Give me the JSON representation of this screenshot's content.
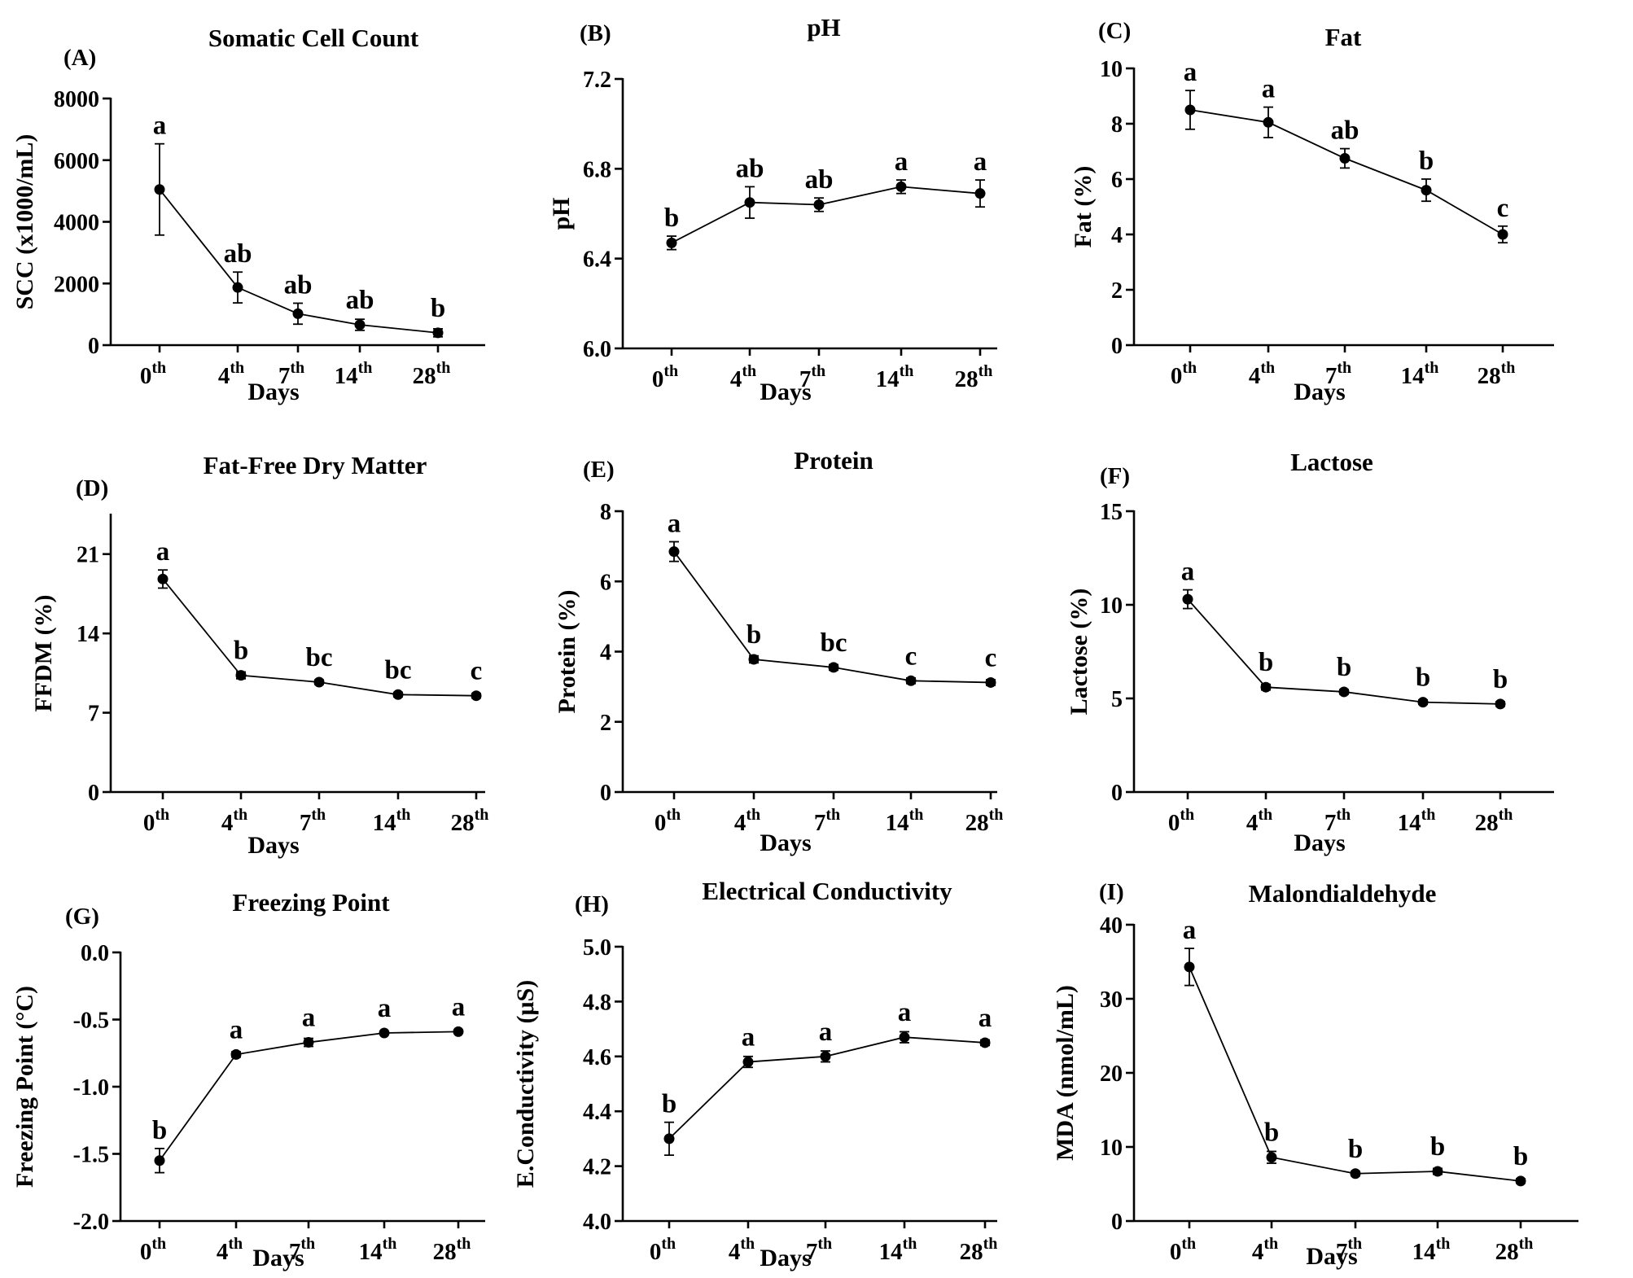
{
  "figure": {
    "xlabel": "Days",
    "categories": [
      {
        "num": "0",
        "sup": "th"
      },
      {
        "num": "4",
        "sup": "th"
      },
      {
        "num": "7",
        "sup": "th"
      },
      {
        "num": "14",
        "sup": "th"
      },
      {
        "num": "28",
        "sup": "th"
      }
    ]
  },
  "chart_data": [
    {
      "panel": "(A)",
      "type": "line",
      "title": "Somatic Cell  Count",
      "xlabel": "Days",
      "ylabel": "SCC (x1000/mL)",
      "categories": [
        "0th",
        "4th",
        "7th",
        "14th",
        "28th"
      ],
      "values": [
        5050,
        1870,
        1020,
        660,
        400
      ],
      "errors": [
        1480,
        500,
        340,
        180,
        130
      ],
      "letters": [
        "a",
        "ab",
        "ab",
        "ab",
        "b"
      ],
      "ylim": [
        0,
        8000
      ],
      "yticks": [
        0,
        2000,
        4000,
        6000,
        8000
      ],
      "ytick_labels": [
        "0",
        "2000",
        "4000",
        "6000",
        "8000"
      ]
    },
    {
      "panel": "(B)",
      "type": "line",
      "title": "pH",
      "xlabel": "Days",
      "ylabel": "pH",
      "categories": [
        "0th",
        "4th",
        "7th",
        "14th",
        "28th"
      ],
      "values": [
        6.47,
        6.65,
        6.64,
        6.72,
        6.69
      ],
      "errors": [
        0.03,
        0.07,
        0.03,
        0.03,
        0.06
      ],
      "letters": [
        "b",
        "ab",
        "ab",
        "a",
        "a"
      ],
      "ylim": [
        6.0,
        7.2
      ],
      "yticks": [
        6.0,
        6.4,
        6.8,
        7.2
      ],
      "ytick_labels": [
        "6.0",
        "6.4",
        "6.8",
        "7.2"
      ]
    },
    {
      "panel": "(C)",
      "type": "line",
      "title": "Fat",
      "xlabel": "Days",
      "ylabel": "Fat (%)",
      "categories": [
        "0th",
        "4th",
        "7th",
        "14th",
        "28th"
      ],
      "values": [
        8.5,
        8.05,
        6.75,
        5.6,
        4.0
      ],
      "errors": [
        0.7,
        0.55,
        0.35,
        0.4,
        0.3
      ],
      "letters": [
        "a",
        "a",
        "ab",
        "b",
        "c"
      ],
      "ylim": [
        0,
        10
      ],
      "yticks": [
        0,
        2,
        4,
        6,
        8,
        10
      ],
      "ytick_labels": [
        "0",
        "2",
        "4",
        "6",
        "8",
        "10"
      ]
    },
    {
      "panel": "(D)",
      "type": "line",
      "title": "Fat-Free Dry Matter",
      "xlabel": "Days",
      "ylabel": "FFDM (%)",
      "categories": [
        "0th",
        "4th",
        "7th",
        "14th",
        "28th"
      ],
      "values": [
        18.8,
        10.3,
        9.7,
        8.6,
        8.5
      ],
      "errors": [
        0.8,
        0.3,
        0.2,
        0.2,
        0.2
      ],
      "letters": [
        "a",
        "b",
        "bc",
        "bc",
        "c"
      ],
      "ylim": [
        0,
        24.5
      ],
      "yticks": [
        0,
        7,
        14,
        21
      ],
      "ytick_labels": [
        "0",
        "7",
        "14",
        "21"
      ]
    },
    {
      "panel": "(E)",
      "type": "line",
      "title": "Protein",
      "xlabel": "Days",
      "ylabel": "Protein (%)",
      "categories": [
        "0th",
        "4th",
        "7th",
        "14th",
        "28th"
      ],
      "values": [
        6.85,
        3.78,
        3.55,
        3.17,
        3.12
      ],
      "errors": [
        0.28,
        0.1,
        0.08,
        0.08,
        0.08
      ],
      "letters": [
        "a",
        "b",
        "bc",
        "c",
        "c"
      ],
      "ylim": [
        0,
        8
      ],
      "yticks": [
        0,
        2,
        4,
        6,
        8
      ],
      "ytick_labels": [
        "0",
        "2",
        "4",
        "6",
        "8"
      ]
    },
    {
      "panel": "(F)",
      "type": "line",
      "title": "Lactose",
      "xlabel": "Days",
      "ylabel": "Lactose (%)",
      "categories": [
        "0th",
        "4th",
        "7th",
        "14th",
        "28th"
      ],
      "values": [
        10.3,
        5.6,
        5.35,
        4.8,
        4.7
      ],
      "errors": [
        0.5,
        0.15,
        0.12,
        0.12,
        0.12
      ],
      "letters": [
        "a",
        "b",
        "b",
        "b",
        "b"
      ],
      "ylim": [
        0,
        15
      ],
      "yticks": [
        0,
        5,
        10,
        15
      ],
      "ytick_labels": [
        "0",
        "5",
        "10",
        "15"
      ]
    },
    {
      "panel": "(G)",
      "type": "line",
      "title": "Freezing Point",
      "xlabel": "Days",
      "ylabel": "Freezing  Point (°C)",
      "categories": [
        "0th",
        "4th",
        "7th",
        "14th",
        "28th"
      ],
      "values": [
        -1.55,
        -0.76,
        -0.67,
        -0.6,
        -0.59
      ],
      "errors": [
        0.09,
        0.02,
        0.03,
        0.01,
        0.01
      ],
      "letters": [
        "b",
        "a",
        "a",
        "a",
        "a"
      ],
      "ylim": [
        -2.0,
        0.0
      ],
      "yticks": [
        -2.0,
        -1.5,
        -1.0,
        -0.5,
        0.0
      ],
      "ytick_labels": [
        "-2.0",
        "-1.5",
        "-1.0",
        "-0.5",
        "0.0"
      ]
    },
    {
      "panel": "(H)",
      "type": "line",
      "title": "Electrical Conductivity",
      "xlabel": "Days",
      "ylabel": "E.Conductivity (μS)",
      "categories": [
        "0th",
        "4th",
        "7th",
        "14th",
        "28th"
      ],
      "values": [
        4.3,
        4.58,
        4.6,
        4.67,
        4.65
      ],
      "errors": [
        0.06,
        0.02,
        0.02,
        0.02,
        0.01
      ],
      "letters": [
        "b",
        "a",
        "a",
        "a",
        "a"
      ],
      "ylim": [
        4.0,
        5.0
      ],
      "yticks": [
        4.0,
        4.2,
        4.4,
        4.6,
        4.8,
        5.0
      ],
      "ytick_labels": [
        "4.0",
        "4.2",
        "4.4",
        "4.6",
        "4.8",
        "5.0"
      ]
    },
    {
      "panel": "(I)",
      "type": "line",
      "title": "Malondialdehyde",
      "xlabel": "Days",
      "ylabel": "MDA (nmol/mL)",
      "categories": [
        "0th",
        "4th",
        "7th",
        "14th",
        "28th"
      ],
      "values": [
        34.3,
        8.6,
        6.4,
        6.7,
        5.4
      ],
      "errors": [
        2.5,
        0.8,
        0.3,
        0.4,
        0.3
      ],
      "letters": [
        "a",
        "b",
        "b",
        "b",
        "b"
      ],
      "ylim": [
        0,
        40
      ],
      "yticks": [
        0,
        10,
        20,
        30,
        40
      ],
      "ytick_labels": [
        "0",
        "10",
        "20",
        "30",
        "40"
      ]
    }
  ]
}
